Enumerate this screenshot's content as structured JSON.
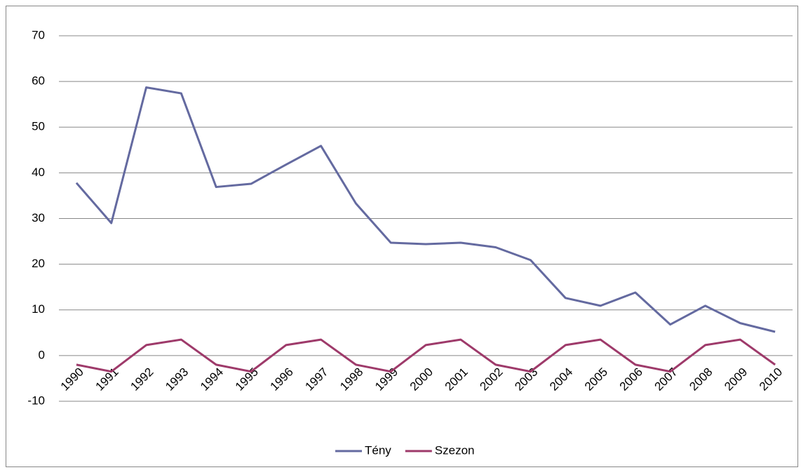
{
  "chart_data": {
    "type": "line",
    "categories": [
      "1990",
      "1991",
      "1992",
      "1993",
      "1994",
      "1995",
      "1996",
      "1997",
      "1998",
      "1999",
      "2000",
      "2001",
      "2002",
      "2003",
      "2004",
      "2005",
      "2006",
      "2007",
      "2008",
      "2009",
      "2010"
    ],
    "series": [
      {
        "name": "Tény",
        "color": "#646aa0",
        "values": [
          37.8,
          29,
          58.7,
          57.4,
          36.9,
          37.6,
          41.8,
          45.9,
          33.3,
          24.7,
          24.4,
          24.7,
          23.7,
          20.9,
          12.6,
          10.9,
          13.8,
          6.8,
          10.9,
          7.1,
          5.2
        ]
      },
      {
        "name": "Szezon",
        "color": "#9e3a6a",
        "values": [
          -2,
          -3.5,
          2.3,
          3.5,
          -2,
          -3.5,
          2.3,
          3.5,
          -2,
          -3.5,
          2.3,
          3.5,
          -2,
          -3.5,
          2.3,
          3.5,
          -2,
          -3.5,
          2.3,
          3.5,
          -2
        ]
      }
    ],
    "ylim": [
      -10,
      70
    ],
    "yticks": [
      -10,
      0,
      10,
      20,
      30,
      40,
      50,
      60,
      70
    ],
    "grid": true,
    "legend": "bottom"
  }
}
